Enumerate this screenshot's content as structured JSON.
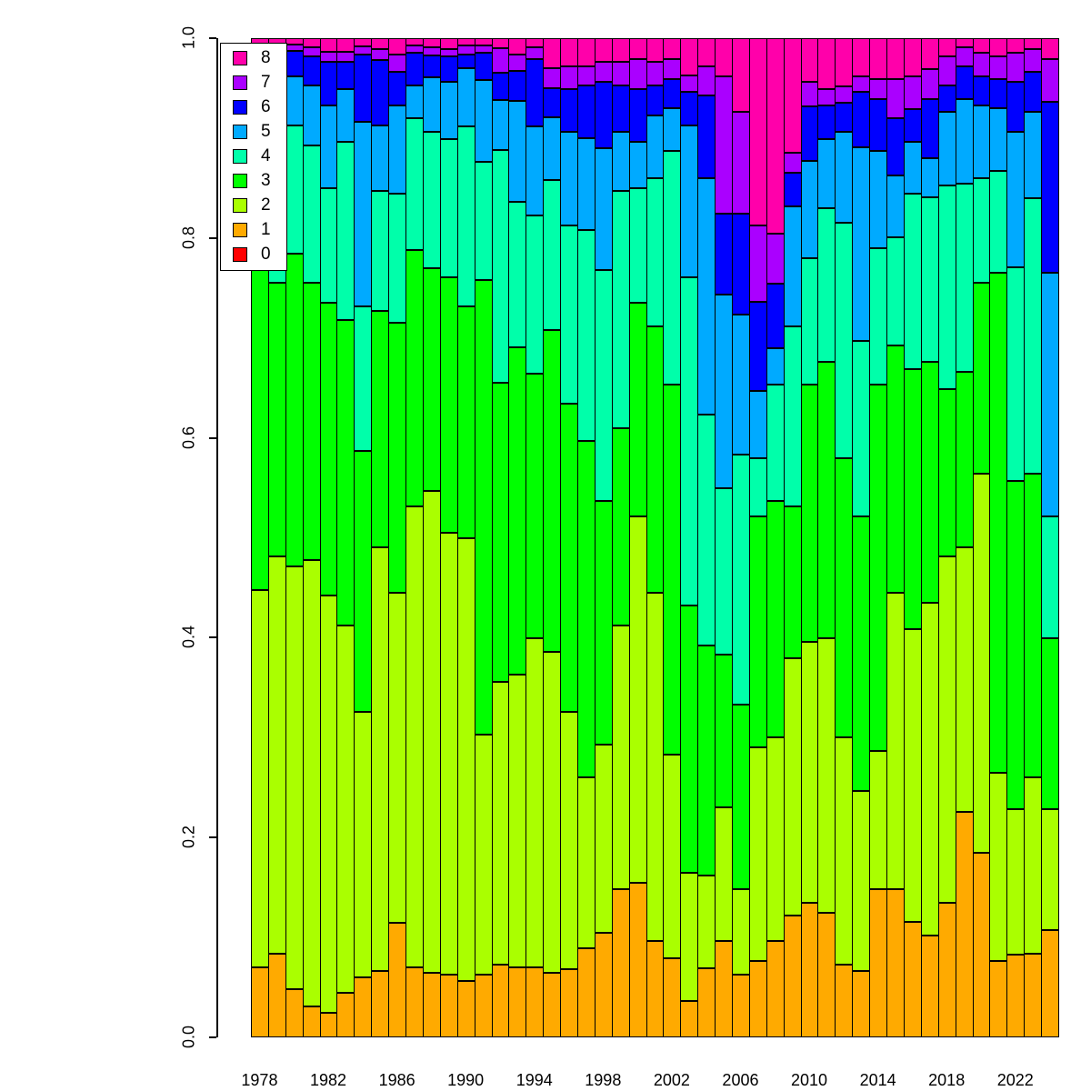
{
  "figure": {
    "background": "#ffffff"
  },
  "legend": {
    "items": [
      {
        "label": "8",
        "color": "#FF00AA"
      },
      {
        "label": "7",
        "color": "#AA00FF"
      },
      {
        "label": "6",
        "color": "#0000FF"
      },
      {
        "label": "5",
        "color": "#00AAFF"
      },
      {
        "label": "4",
        "color": "#00FFAA"
      },
      {
        "label": "3",
        "color": "#00FF00"
      },
      {
        "label": "2",
        "color": "#AAFF00"
      },
      {
        "label": "1",
        "color": "#FFAA00"
      },
      {
        "label": "0",
        "color": "#FF0000"
      }
    ]
  },
  "chart_data": {
    "type": "bar",
    "subtype": "stacked_normalized_vertical",
    "title": "",
    "xlabel": "",
    "ylabel": "",
    "ylim": [
      0.0,
      1.0
    ],
    "grid": false,
    "legend_position": "top-left-inside",
    "y_tick_labels": [
      "0.0",
      "0.2",
      "0.4",
      "0.6",
      "0.8",
      "1.0"
    ],
    "x_tick_labels": [
      "1978",
      "1982",
      "1986",
      "1990",
      "1994",
      "1998",
      "2002",
      "2006",
      "2010",
      "2014",
      "2018",
      "2022"
    ],
    "x": [
      1978,
      1979,
      1980,
      1981,
      1982,
      1983,
      1984,
      1985,
      1986,
      1987,
      1988,
      1989,
      1990,
      1991,
      1992,
      1993,
      1994,
      1995,
      1996,
      1997,
      1998,
      1999,
      2000,
      2001,
      2002,
      2003,
      2004,
      2005,
      2006,
      2007,
      2008,
      2009,
      2010,
      2011,
      2012,
      2013,
      2014,
      2015,
      2016,
      2017,
      2018,
      2019,
      2020,
      2021,
      2022,
      2023,
      2024
    ],
    "stack_order_bottom_to_top": [
      "0",
      "1",
      "2",
      "3",
      "4",
      "5",
      "6",
      "7",
      "8"
    ],
    "series": [
      {
        "name": "0",
        "color": "#FF0000",
        "values": [
          0,
          0,
          0,
          0,
          0,
          0,
          0,
          0,
          0,
          0,
          0,
          0,
          0,
          0,
          0,
          0,
          0,
          0,
          0,
          0,
          0,
          0,
          0,
          0,
          0,
          0,
          0,
          0,
          0,
          0,
          0,
          0,
          0,
          0,
          0,
          0,
          0,
          0,
          0,
          0,
          0,
          0,
          0,
          0,
          0,
          0,
          0
        ]
      },
      {
        "name": "1",
        "color": "#FFAA00",
        "values": [
          0.07,
          0.084,
          0.048,
          0.031,
          0.025,
          0.045,
          0.06,
          0.066,
          0.115,
          0.07,
          0.065,
          0.063,
          0.056,
          0.063,
          0.073,
          0.07,
          0.07,
          0.065,
          0.068,
          0.089,
          0.105,
          0.148,
          0.155,
          0.096,
          0.079,
          0.036,
          0.069,
          0.096,
          0.063,
          0.076,
          0.096,
          0.122,
          0.135,
          0.125,
          0.073,
          0.066,
          0.148,
          0.148,
          0.116,
          0.102,
          0.135,
          0.226,
          0.185,
          0.076,
          0.083,
          0.084,
          0.107
        ]
      },
      {
        "name": "2",
        "color": "#AAFF00",
        "values": [
          0.378,
          0.397,
          0.423,
          0.447,
          0.417,
          0.367,
          0.266,
          0.424,
          0.33,
          0.461,
          0.482,
          0.442,
          0.444,
          0.24,
          0.283,
          0.293,
          0.329,
          0.321,
          0.258,
          0.171,
          0.188,
          0.264,
          0.366,
          0.349,
          0.204,
          0.129,
          0.093,
          0.134,
          0.085,
          0.214,
          0.204,
          0.257,
          0.261,
          0.274,
          0.227,
          0.181,
          0.139,
          0.297,
          0.293,
          0.333,
          0.346,
          0.264,
          0.379,
          0.189,
          0.145,
          0.176,
          0.121
        ]
      },
      {
        "name": "3",
        "color": "#00FF00",
        "values": [
          0.327,
          0.274,
          0.313,
          0.277,
          0.293,
          0.306,
          0.261,
          0.237,
          0.27,
          0.257,
          0.223,
          0.256,
          0.232,
          0.455,
          0.299,
          0.328,
          0.265,
          0.322,
          0.308,
          0.337,
          0.244,
          0.198,
          0.214,
          0.267,
          0.37,
          0.267,
          0.23,
          0.153,
          0.185,
          0.231,
          0.237,
          0.152,
          0.257,
          0.277,
          0.28,
          0.274,
          0.366,
          0.247,
          0.26,
          0.241,
          0.168,
          0.176,
          0.191,
          0.5,
          0.329,
          0.304,
          0.171
        ]
      },
      {
        "name": "4",
        "color": "#00FFAA",
        "values": [
          0.13,
          0.14,
          0.129,
          0.138,
          0.115,
          0.178,
          0.145,
          0.12,
          0.129,
          0.132,
          0.136,
          0.138,
          0.18,
          0.118,
          0.233,
          0.145,
          0.159,
          0.15,
          0.179,
          0.211,
          0.231,
          0.237,
          0.115,
          0.148,
          0.234,
          0.329,
          0.231,
          0.167,
          0.25,
          0.059,
          0.116,
          0.181,
          0.127,
          0.154,
          0.235,
          0.176,
          0.137,
          0.109,
          0.175,
          0.165,
          0.204,
          0.188,
          0.105,
          0.102,
          0.214,
          0.276,
          0.122
        ]
      },
      {
        "name": "5",
        "color": "#00AAFF",
        "values": [
          0.05,
          0.053,
          0.049,
          0.06,
          0.083,
          0.053,
          0.184,
          0.066,
          0.089,
          0.033,
          0.055,
          0.057,
          0.058,
          0.082,
          0.05,
          0.101,
          0.089,
          0.063,
          0.093,
          0.092,
          0.122,
          0.059,
          0.046,
          0.063,
          0.043,
          0.152,
          0.237,
          0.193,
          0.14,
          0.067,
          0.037,
          0.12,
          0.097,
          0.069,
          0.091,
          0.194,
          0.097,
          0.062,
          0.052,
          0.039,
          0.073,
          0.085,
          0.073,
          0.063,
          0.135,
          0.086,
          0.244
        ]
      },
      {
        "name": "6",
        "color": "#0000FF",
        "values": [
          0.027,
          0.032,
          0.025,
          0.029,
          0.043,
          0.027,
          0.068,
          0.065,
          0.033,
          0.032,
          0.022,
          0.026,
          0.014,
          0.027,
          0.027,
          0.03,
          0.067,
          0.029,
          0.043,
          0.053,
          0.066,
          0.047,
          0.053,
          0.03,
          0.029,
          0.033,
          0.083,
          0.081,
          0.101,
          0.089,
          0.064,
          0.033,
          0.055,
          0.034,
          0.029,
          0.055,
          0.052,
          0.057,
          0.033,
          0.059,
          0.027,
          0.033,
          0.029,
          0.029,
          0.05,
          0.04,
          0.171
        ]
      },
      {
        "name": "7",
        "color": "#AA00FF",
        "values": [
          0.009,
          0.01,
          0.007,
          0.009,
          0.01,
          0.01,
          0.008,
          0.011,
          0.018,
          0.008,
          0.008,
          0.007,
          0.009,
          0.008,
          0.025,
          0.017,
          0.012,
          0.02,
          0.023,
          0.019,
          0.02,
          0.023,
          0.03,
          0.023,
          0.02,
          0.017,
          0.029,
          0.138,
          0.102,
          0.077,
          0.05,
          0.02,
          0.024,
          0.016,
          0.017,
          0.016,
          0.02,
          0.039,
          0.033,
          0.03,
          0.029,
          0.019,
          0.023,
          0.023,
          0.029,
          0.023,
          0.043
        ]
      },
      {
        "name": "8",
        "color": "#FF00AA",
        "values": [
          0.009,
          0.01,
          0.006,
          0.009,
          0.014,
          0.014,
          0.008,
          0.011,
          0.016,
          0.007,
          0.009,
          0.011,
          0.007,
          0.007,
          0.01,
          0.016,
          0.009,
          0.03,
          0.028,
          0.028,
          0.024,
          0.024,
          0.021,
          0.024,
          0.021,
          0.037,
          0.028,
          0.038,
          0.074,
          0.187,
          0.196,
          0.115,
          0.044,
          0.051,
          0.048,
          0.038,
          0.041,
          0.041,
          0.038,
          0.031,
          0.018,
          0.009,
          0.015,
          0.018,
          0.015,
          0.011,
          0.021
        ]
      }
    ]
  }
}
